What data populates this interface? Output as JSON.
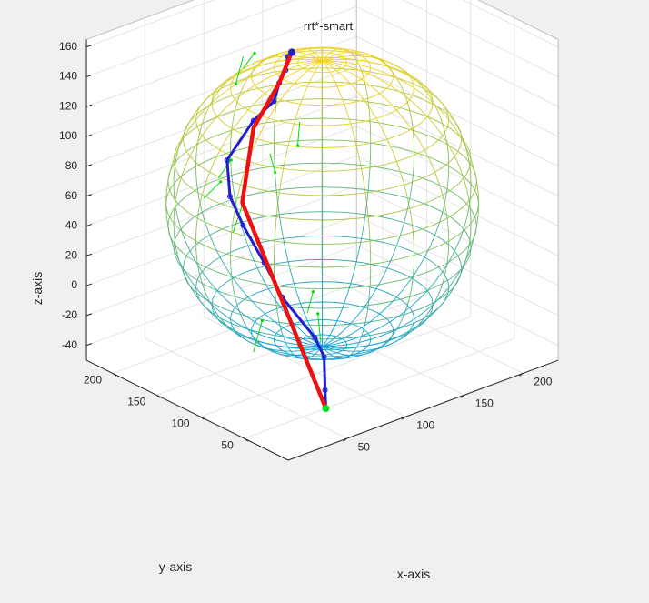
{
  "chart_data": {
    "type": "scatter",
    "title": "rrt*-smart",
    "xlabel": "x-axis",
    "ylabel": "y-axis",
    "zlabel": "z-axis",
    "xlim": [
      0,
      230
    ],
    "ylim": [
      0,
      230
    ],
    "zlim": [
      -50,
      165
    ],
    "z_ticks": [
      "160",
      "140",
      "120",
      "100",
      "80",
      "60",
      "40",
      "20",
      "0",
      "-20",
      "-40"
    ],
    "y_ticks": [
      "200",
      "150",
      "100",
      "50"
    ],
    "x_ticks": [
      "50",
      "100",
      "150",
      "200"
    ],
    "grid": true,
    "view": "3d",
    "obstacle": {
      "shape": "sphere",
      "center": [
        115,
        115,
        55
      ],
      "radius": 100,
      "colormap": "parula-like"
    },
    "colors": {
      "sphere_low": "#0d9fd8",
      "sphere_mid": "#7fbf5a",
      "sphere_high": "#f5d21a",
      "tree": "#00e000",
      "path": "#1f1fd0",
      "smart_path": "#ee1111",
      "start": "#00dd22"
    },
    "series": [
      {
        "name": "",
        "kind": "tree-branches",
        "segments": [
          [
            [
              70,
              145,
              158
            ],
            [
              66,
              148,
              140
            ]
          ],
          [
            [
              70,
              145,
              150
            ],
            [
              76,
              140,
              160
            ]
          ],
          [
            [
              85,
              128,
              135
            ],
            [
              84,
              120,
              148
            ]
          ],
          [
            [
              92,
              110,
              118
            ],
            [
              94,
              115,
              100
            ]
          ],
          [
            [
              80,
              128,
              95
            ],
            [
              86,
              130,
              80
            ]
          ],
          [
            [
              60,
              160,
              75
            ],
            [
              65,
              152,
              88
            ]
          ],
          [
            [
              55,
              170,
              60
            ],
            [
              62,
              160,
              72
            ]
          ],
          [
            [
              65,
              150,
              40
            ],
            [
              70,
              146,
              58
            ]
          ],
          [
            [
              95,
              90,
              -25
            ],
            [
              100,
              100,
              -10
            ]
          ],
          [
            [
              60,
              120,
              -30
            ],
            [
              66,
              118,
              -10
            ]
          ],
          [
            [
              88,
              96,
              -5
            ],
            [
              90,
              92,
              10
            ]
          ]
        ]
      },
      {
        "name": "",
        "kind": "path",
        "points": [
          [
            62,
            40,
            -45
          ],
          [
            65,
            45,
            -35
          ],
          [
            68,
            50,
            -15
          ],
          [
            75,
            70,
            -10
          ],
          [
            62,
            90,
            15
          ],
          [
            58,
            105,
            35
          ],
          [
            55,
            125,
            55
          ],
          [
            55,
            140,
            70
          ],
          [
            60,
            150,
            90
          ],
          [
            75,
            140,
            115
          ],
          [
            85,
            130,
            128
          ],
          [
            88,
            128,
            140
          ],
          [
            92,
            126,
            148
          ],
          [
            93,
            125,
            157
          ],
          [
            95,
            123,
            160
          ]
        ]
      },
      {
        "name": "",
        "kind": "smart-path",
        "points": [
          [
            62,
            40,
            -45
          ],
          [
            58,
            130,
            68
          ],
          [
            75,
            140,
            110
          ],
          [
            88,
            128,
            140
          ],
          [
            95,
            123,
            160
          ]
        ]
      },
      {
        "name": "",
        "kind": "start-goal",
        "points": [
          [
            62,
            40,
            -45
          ],
          [
            95,
            123,
            160
          ]
        ]
      }
    ]
  }
}
